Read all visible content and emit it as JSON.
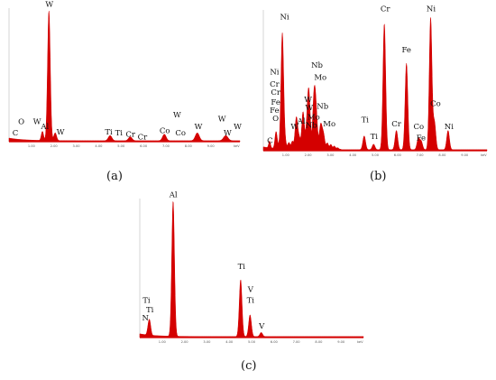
{
  "figure": {
    "panel_labels": [
      "(a)",
      "(b)",
      "(c)"
    ]
  },
  "colors": {
    "spectrum": "#d40000",
    "background_fill": "#ffffff",
    "axis": "#b8b8b8"
  },
  "chart_data": [
    {
      "type": "area",
      "panel": "(a)",
      "title": "",
      "xlabel": "",
      "ylabel": "",
      "x_unit": "keV",
      "xlim": [
        0,
        10.3
      ],
      "ylim": [
        0,
        1
      ],
      "x_tick_labels": [
        "1.00",
        "2.00",
        "3.00",
        "4.00",
        "5.00",
        "6.00",
        "7.00",
        "8.00",
        "9.00",
        "keV"
      ],
      "peaks": [
        {
          "x": 1.49,
          "y": 0.07,
          "w": 0.05
        },
        {
          "x": 1.78,
          "y": 1.0,
          "w": 0.06
        },
        {
          "x": 2.06,
          "y": 0.06,
          "w": 0.06
        },
        {
          "x": 4.51,
          "y": 0.04,
          "w": 0.08
        },
        {
          "x": 5.41,
          "y": 0.03,
          "w": 0.08
        },
        {
          "x": 6.93,
          "y": 0.05,
          "w": 0.08
        },
        {
          "x": 8.4,
          "y": 0.06,
          "w": 0.09
        },
        {
          "x": 9.67,
          "y": 0.04,
          "w": 0.1
        }
      ],
      "annotations": [
        {
          "text": "C",
          "x": 0.28,
          "y": 0.04
        },
        {
          "text": "O",
          "x": 0.55,
          "y": 0.13
        },
        {
          "text": "W",
          "x": 1.25,
          "y": 0.13
        },
        {
          "text": "Al",
          "x": 1.6,
          "y": 0.09
        },
        {
          "text": "W",
          "x": 1.8,
          "y": 1.03
        },
        {
          "text": "W",
          "x": 2.3,
          "y": 0.05
        },
        {
          "text": "Ti",
          "x": 4.45,
          "y": 0.05
        },
        {
          "text": "Ti",
          "x": 4.9,
          "y": 0.04
        },
        {
          "text": "Cr",
          "x": 5.42,
          "y": 0.03
        },
        {
          "text": "Cr",
          "x": 5.95,
          "y": 0.01
        },
        {
          "text": "Co",
          "x": 6.95,
          "y": 0.06
        },
        {
          "text": "W",
          "x": 7.5,
          "y": 0.18
        },
        {
          "text": "Co",
          "x": 7.65,
          "y": 0.04
        },
        {
          "text": "W",
          "x": 8.45,
          "y": 0.09
        },
        {
          "text": "W",
          "x": 9.5,
          "y": 0.15
        },
        {
          "text": "W",
          "x": 9.75,
          "y": 0.04
        },
        {
          "text": "W",
          "x": 10.2,
          "y": 0.09
        }
      ]
    },
    {
      "type": "area",
      "panel": "(b)",
      "title": "",
      "xlabel": "",
      "ylabel": "",
      "x_unit": "keV",
      "xlim": [
        0,
        10
      ],
      "ylim": [
        0,
        1
      ],
      "x_tick_labels": [
        "1.00",
        "2.00",
        "3.00",
        "4.00",
        "5.00",
        "6.00",
        "7.00",
        "8.00",
        "9.00",
        "keV"
      ],
      "peaks": [
        {
          "x": 0.28,
          "y": 0.05,
          "w": 0.04
        },
        {
          "x": 0.57,
          "y": 0.12,
          "w": 0.05
        },
        {
          "x": 0.85,
          "y": 0.82,
          "w": 0.06
        },
        {
          "x": 1.49,
          "y": 0.18,
          "w": 0.06
        },
        {
          "x": 1.78,
          "y": 0.2,
          "w": 0.06
        },
        {
          "x": 2.02,
          "y": 0.4,
          "w": 0.06
        },
        {
          "x": 2.3,
          "y": 0.42,
          "w": 0.07
        },
        {
          "x": 2.6,
          "y": 0.14,
          "w": 0.08
        },
        {
          "x": 4.51,
          "y": 0.1,
          "w": 0.06
        },
        {
          "x": 4.93,
          "y": 0.04,
          "w": 0.06
        },
        {
          "x": 5.41,
          "y": 0.92,
          "w": 0.06
        },
        {
          "x": 5.95,
          "y": 0.14,
          "w": 0.06
        },
        {
          "x": 6.4,
          "y": 0.63,
          "w": 0.06
        },
        {
          "x": 6.93,
          "y": 0.08,
          "w": 0.06
        },
        {
          "x": 7.06,
          "y": 0.06,
          "w": 0.06
        },
        {
          "x": 7.48,
          "y": 0.96,
          "w": 0.06
        },
        {
          "x": 7.65,
          "y": 0.2,
          "w": 0.06
        },
        {
          "x": 8.26,
          "y": 0.14,
          "w": 0.06
        }
      ],
      "background": {
        "x_start": 0.5,
        "x_end": 3.5,
        "level": 0.08
      },
      "annotations": [
        {
          "text": "Ni",
          "x": 0.95,
          "y": 0.95
        },
        {
          "text": "Ni",
          "x": 0.5,
          "y": 0.55
        },
        {
          "text": "Cr",
          "x": 0.5,
          "y": 0.46
        },
        {
          "text": "Cr",
          "x": 0.55,
          "y": 0.4
        },
        {
          "text": "Fe",
          "x": 0.55,
          "y": 0.33
        },
        {
          "text": "Fe",
          "x": 0.5,
          "y": 0.27
        },
        {
          "text": "O",
          "x": 0.55,
          "y": 0.21
        },
        {
          "text": "C",
          "x": 0.3,
          "y": 0.05
        },
        {
          "text": "W",
          "x": 1.4,
          "y": 0.15
        },
        {
          "text": "Al",
          "x": 1.7,
          "y": 0.19
        },
        {
          "text": "W",
          "x": 2.0,
          "y": 0.35
        },
        {
          "text": "W",
          "x": 2.05,
          "y": 0.29
        },
        {
          "text": "Mo",
          "x": 2.25,
          "y": 0.22
        },
        {
          "text": "Nb",
          "x": 2.15,
          "y": 0.16
        },
        {
          "text": "Nb",
          "x": 2.4,
          "y": 0.6
        },
        {
          "text": "Mo",
          "x": 2.55,
          "y": 0.51
        },
        {
          "text": "Nb",
          "x": 2.65,
          "y": 0.3
        },
        {
          "text": "Mo",
          "x": 2.95,
          "y": 0.17
        },
        {
          "text": "Ti",
          "x": 4.55,
          "y": 0.2
        },
        {
          "text": "Ti",
          "x": 4.95,
          "y": 0.08
        },
        {
          "text": "Cr",
          "x": 5.45,
          "y": 1.01
        },
        {
          "text": "Cr",
          "x": 5.95,
          "y": 0.17
        },
        {
          "text": "Fe",
          "x": 6.4,
          "y": 0.71
        },
        {
          "text": "Co",
          "x": 6.95,
          "y": 0.15
        },
        {
          "text": "Fe",
          "x": 7.05,
          "y": 0.07
        },
        {
          "text": "Ni",
          "x": 7.5,
          "y": 1.01
        },
        {
          "text": "Co",
          "x": 7.7,
          "y": 0.32
        },
        {
          "text": "Ni",
          "x": 8.3,
          "y": 0.15
        }
      ]
    },
    {
      "type": "area",
      "panel": "(c)",
      "title": "",
      "xlabel": "",
      "ylabel": "",
      "x_unit": "keV",
      "xlim": [
        0,
        10
      ],
      "ylim": [
        0,
        1
      ],
      "x_tick_labels": [
        "1.00",
        "2.00",
        "3.00",
        "4.00",
        "5.00",
        "6.00",
        "7.00",
        "8.00",
        "9.00",
        "keV"
      ],
      "peaks": [
        {
          "x": 0.39,
          "y": 0.06,
          "w": 0.05
        },
        {
          "x": 0.45,
          "y": 0.08,
          "w": 0.05
        },
        {
          "x": 1.49,
          "y": 1.0,
          "w": 0.06
        },
        {
          "x": 4.51,
          "y": 0.42,
          "w": 0.06
        },
        {
          "x": 4.93,
          "y": 0.16,
          "w": 0.06
        },
        {
          "x": 5.43,
          "y": 0.03,
          "w": 0.06
        }
      ],
      "annotations": [
        {
          "text": "Al",
          "x": 1.5,
          "y": 1.03
        },
        {
          "text": "Ti",
          "x": 0.3,
          "y": 0.25
        },
        {
          "text": "Ti",
          "x": 0.45,
          "y": 0.18
        },
        {
          "text": "N",
          "x": 0.25,
          "y": 0.12
        },
        {
          "text": "Ti",
          "x": 4.55,
          "y": 0.5
        },
        {
          "text": "V",
          "x": 4.95,
          "y": 0.33
        },
        {
          "text": "Ti",
          "x": 4.95,
          "y": 0.25
        },
        {
          "text": "V",
          "x": 5.45,
          "y": 0.06
        }
      ]
    }
  ]
}
